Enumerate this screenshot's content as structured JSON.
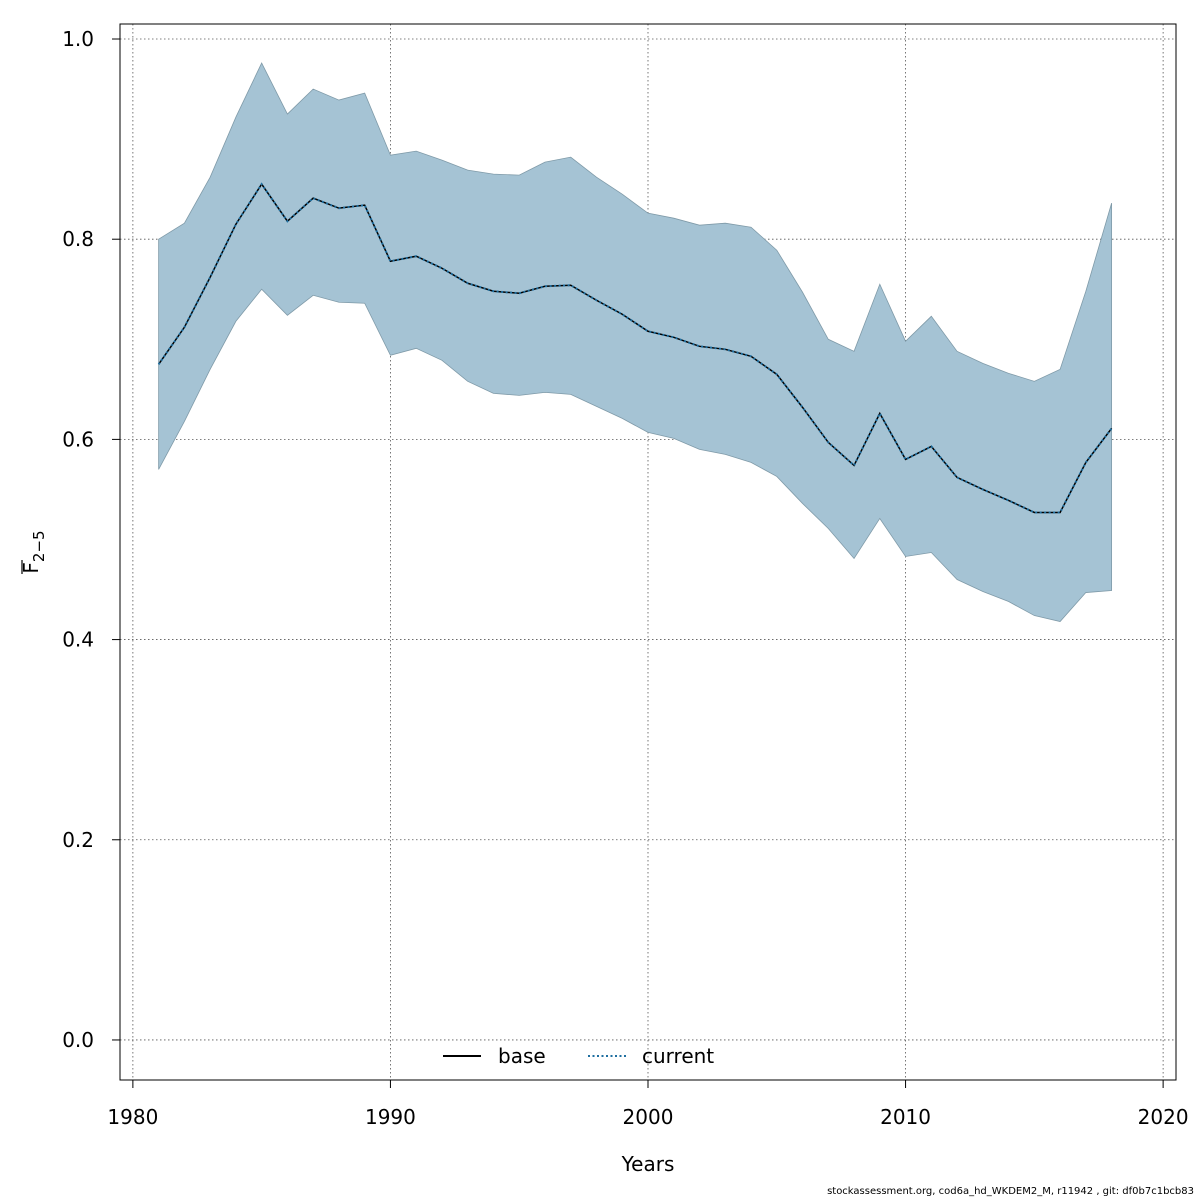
{
  "chart_data": {
    "type": "line",
    "xlabel": "Years",
    "ylabel": {
      "main": "F",
      "sub": "2−5"
    },
    "xlim": [
      1979.5,
      2020.5
    ],
    "ylim": [
      -0.04,
      1.015
    ],
    "x_ticks": [
      "1980",
      "1990",
      "2000",
      "2010",
      "2020"
    ],
    "y_ticks": [
      "0.0",
      "0.2",
      "0.4",
      "0.6",
      "0.8",
      "1.0"
    ],
    "grid": true,
    "legend_position": "bottom-center",
    "band_color": "#a5c3d4",
    "band_edge_color": "#7f9aa8",
    "x": [
      1981,
      1982,
      1983,
      1984,
      1985,
      1986,
      1987,
      1988,
      1989,
      1990,
      1991,
      1992,
      1993,
      1994,
      1995,
      1996,
      1997,
      1998,
      1999,
      2000,
      2001,
      2002,
      2003,
      2004,
      2005,
      2006,
      2007,
      2008,
      2009,
      2010,
      2011,
      2012,
      2013,
      2014,
      2015,
      2016,
      2017,
      2018
    ],
    "series": [
      {
        "name": "base",
        "style": "solid",
        "color": "#000000",
        "values": [
          0.675,
          0.712,
          0.762,
          0.815,
          0.855,
          0.818,
          0.841,
          0.831,
          0.834,
          0.778,
          0.783,
          0.771,
          0.756,
          0.748,
          0.746,
          0.753,
          0.754,
          0.739,
          0.725,
          0.708,
          0.702,
          0.693,
          0.69,
          0.683,
          0.665,
          0.632,
          0.597,
          0.574,
          0.626,
          0.58,
          0.593,
          0.562,
          0.55,
          0.539,
          0.527,
          0.527,
          0.577,
          0.611
        ]
      },
      {
        "name": "current",
        "style": "dotted",
        "color": "#1f6fa0",
        "values": [
          0.675,
          0.712,
          0.762,
          0.815,
          0.855,
          0.818,
          0.841,
          0.831,
          0.834,
          0.778,
          0.783,
          0.771,
          0.756,
          0.748,
          0.746,
          0.753,
          0.754,
          0.739,
          0.725,
          0.708,
          0.702,
          0.693,
          0.69,
          0.683,
          0.665,
          0.632,
          0.597,
          0.574,
          0.626,
          0.58,
          0.593,
          0.562,
          0.55,
          0.539,
          0.527,
          0.527,
          0.577,
          0.611
        ]
      }
    ],
    "band": {
      "lower": [
        0.57,
        0.618,
        0.67,
        0.718,
        0.75,
        0.724,
        0.744,
        0.737,
        0.736,
        0.684,
        0.691,
        0.679,
        0.658,
        0.646,
        0.644,
        0.647,
        0.645,
        0.633,
        0.621,
        0.607,
        0.601,
        0.59,
        0.585,
        0.577,
        0.563,
        0.536,
        0.511,
        0.481,
        0.521,
        0.483,
        0.487,
        0.46,
        0.448,
        0.438,
        0.424,
        0.418,
        0.447,
        0.449
      ],
      "upper": [
        0.8,
        0.816,
        0.862,
        0.922,
        0.976,
        0.925,
        0.95,
        0.939,
        0.946,
        0.884,
        0.888,
        0.879,
        0.869,
        0.865,
        0.864,
        0.877,
        0.882,
        0.862,
        0.845,
        0.826,
        0.821,
        0.814,
        0.816,
        0.812,
        0.789,
        0.747,
        0.7,
        0.688,
        0.755,
        0.698,
        0.723,
        0.688,
        0.676,
        0.666,
        0.658,
        0.67,
        0.748,
        0.836
      ]
    }
  },
  "footer": "stockassessment.org, cod6a_hd_WKDEM2_M, r11942 , git: df0b7c1bcb83"
}
